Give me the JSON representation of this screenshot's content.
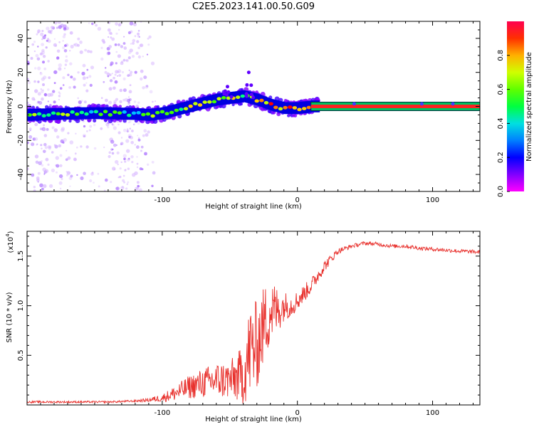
{
  "colors": {
    "line": "#e8322e",
    "colormap": [
      "#ff00ff",
      "#8000ff",
      "#0000ff",
      "#00c0ff",
      "#00ff80",
      "#40ff00",
      "#c0ff00",
      "#ffd000",
      "#ff8000",
      "#ff0000",
      "#ff0060"
    ],
    "ridge_center": "#ff2020"
  },
  "chart_data": [
    {
      "type": "heatmap",
      "title": "C2E5.2023.141.00.50.G09",
      "xlabel": "Height of straight line (km)",
      "ylabel": "Frequency (Hz)",
      "xlim": [
        -200,
        135
      ],
      "ylim": [
        -50,
        50
      ],
      "x_ticks": [
        -100,
        0,
        100
      ],
      "x_tick_labels": [
        "-100",
        "0",
        "100"
      ],
      "y_ticks": [
        -40,
        -20,
        0,
        20,
        40
      ],
      "y_tick_labels": [
        "-40",
        "-20",
        "0",
        "20",
        "40"
      ],
      "colorbar": {
        "label": "Normalized spectral amplitude",
        "range": [
          0,
          1
        ],
        "ticks": [
          0,
          0.2,
          0.4,
          0.6,
          0.8
        ],
        "tick_labels": [
          "0.0",
          "0.2",
          "0.4",
          "0.6",
          "0.8"
        ]
      },
      "ridge": {
        "x": [
          -200,
          -180,
          -160,
          -140,
          -120,
          -110,
          -100,
          -90,
          -80,
          -70,
          -60,
          -50,
          -40,
          -30,
          -20,
          -10,
          0,
          10,
          20,
          40,
          60,
          80,
          100,
          120,
          135
        ],
        "frequency": [
          -5,
          -4.5,
          -4,
          -4,
          -4.5,
          -5,
          -4,
          -2,
          0,
          2,
          4,
          5,
          6,
          4,
          1,
          -1,
          -1,
          0,
          0,
          0,
          0,
          0,
          0,
          0,
          0
        ],
        "amplitude": [
          0.45,
          0.5,
          0.45,
          0.45,
          0.4,
          0.45,
          0.5,
          0.55,
          0.6,
          0.65,
          0.6,
          0.55,
          0.55,
          0.65,
          0.75,
          0.7,
          0.8,
          0.9,
          1.0,
          1.0,
          1.0,
          1.0,
          1.0,
          1.0,
          1.0
        ]
      }
    },
    {
      "type": "line",
      "xlabel": "Height of straight line (km)",
      "ylabel": "SNR (10 * v/v)",
      "y_scale_label": "(x10",
      "y_scale_exp": "4",
      "y_scale_close": ")",
      "xlim": [
        -200,
        135
      ],
      "ylim": [
        0,
        1.75
      ],
      "x_ticks": [
        -100,
        0,
        100
      ],
      "x_tick_labels": [
        "-100",
        "0",
        "100"
      ],
      "y_ticks": [
        0.5,
        1.0,
        1.5
      ],
      "y_tick_labels": [
        "0.5",
        "1.0",
        "1.5"
      ],
      "series": [
        {
          "name": "SNR",
          "x": [
            -200,
            -180,
            -160,
            -140,
            -120,
            -110,
            -100,
            -90,
            -80,
            -70,
            -60,
            -50,
            -40,
            -35,
            -30,
            -25,
            -20,
            -15,
            -10,
            -5,
            0,
            10,
            20,
            30,
            40,
            50,
            60,
            70,
            80,
            90,
            100,
            110,
            120,
            135
          ],
          "y": [
            0.03,
            0.03,
            0.03,
            0.03,
            0.04,
            0.05,
            0.07,
            0.12,
            0.18,
            0.22,
            0.25,
            0.25,
            0.3,
            0.55,
            0.6,
            0.8,
            0.95,
            0.95,
            1.0,
            1.0,
            1.05,
            1.2,
            1.4,
            1.55,
            1.6,
            1.63,
            1.62,
            1.6,
            1.6,
            1.58,
            1.57,
            1.56,
            1.55,
            1.54
          ],
          "noise": [
            0.01,
            0.01,
            0.01,
            0.01,
            0.01,
            0.02,
            0.04,
            0.08,
            0.12,
            0.15,
            0.18,
            0.2,
            0.3,
            0.5,
            0.45,
            0.4,
            0.35,
            0.25,
            0.15,
            0.12,
            0.1,
            0.08,
            0.06,
            0.03,
            0.02,
            0.02,
            0.02,
            0.02,
            0.02,
            0.02,
            0.02,
            0.02,
            0.02,
            0.02
          ]
        }
      ]
    }
  ]
}
